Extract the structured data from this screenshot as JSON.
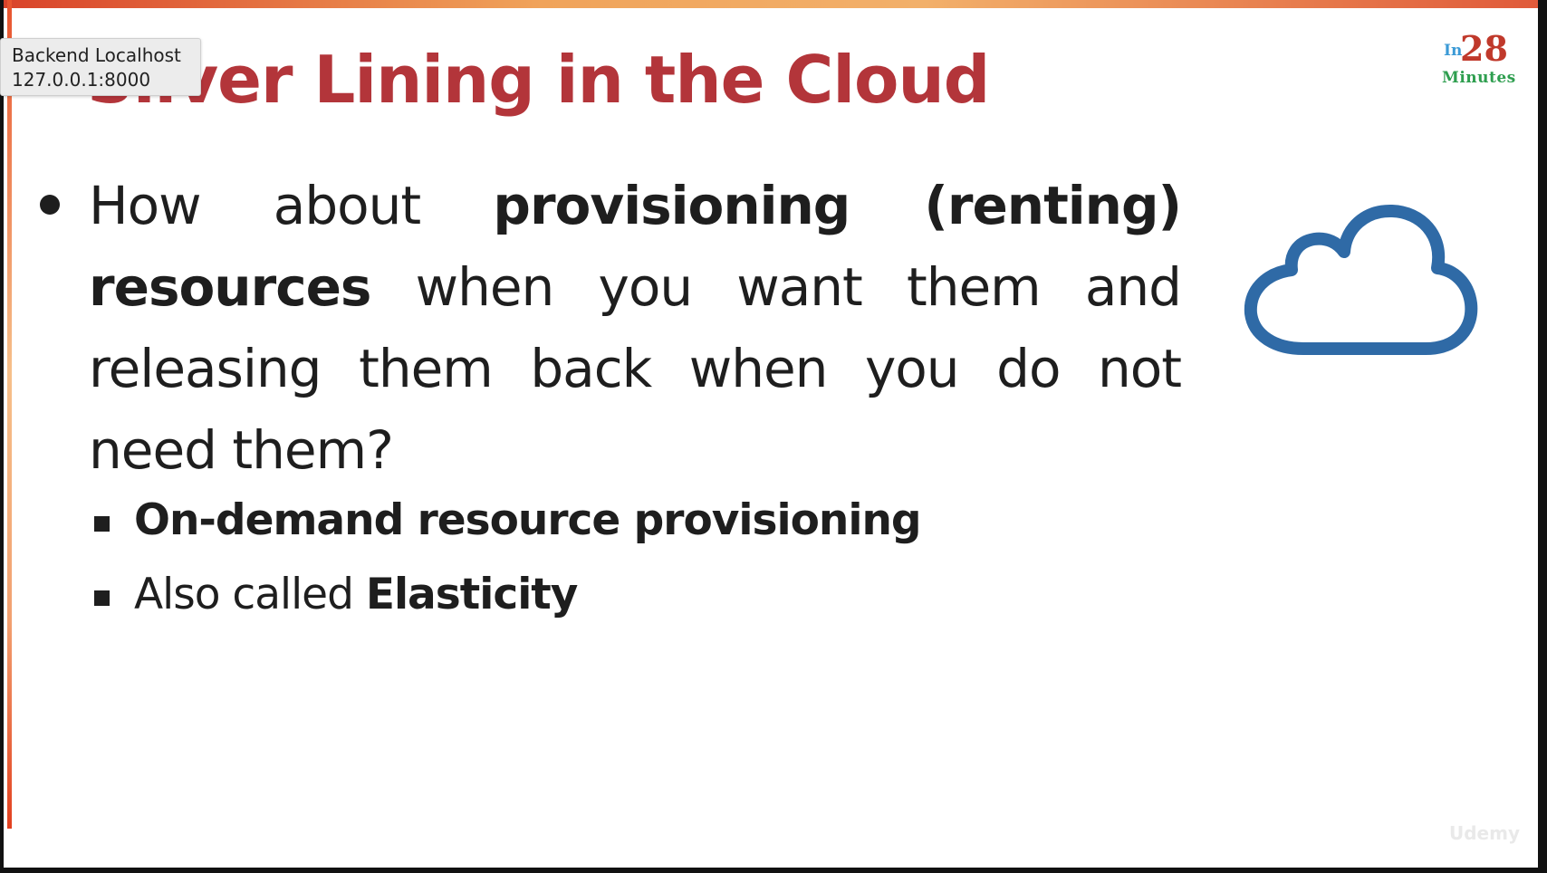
{
  "tooltip": {
    "line1": "Backend Localhost",
    "line2": "127.0.0.1:8000"
  },
  "slide": {
    "title": "Silver Lining in the Cloud",
    "brand": {
      "in": "In",
      "number": "28",
      "minutes": "Minutes"
    },
    "main_bullet": {
      "t1": "How about ",
      "b1": "provisioning (renting) resources",
      "t2": " when you want them and releasing them back when you do not need them?"
    },
    "sub_bullets": {
      "first": "On-demand resource provisioning",
      "second_prefix": "Also called ",
      "second_bold": "Elasticity"
    },
    "cloud_icon": "cloud-icon",
    "watermark": "Udemy",
    "colors": {
      "title": "#b3353a",
      "cloud": "#2f6aa6",
      "brand_in": "#3b9ad6",
      "brand_number": "#c0392b",
      "brand_minutes": "#2e9e4f"
    }
  }
}
